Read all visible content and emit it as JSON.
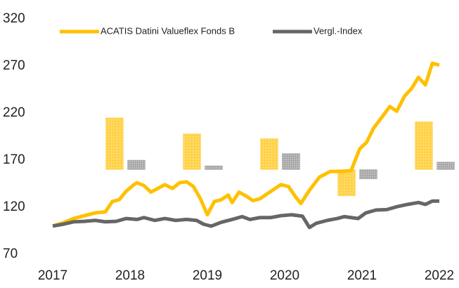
{
  "chart_data": {
    "type": "line",
    "xlim": [
      2017,
      2022
    ],
    "xticks": [
      2017,
      2018,
      2019,
      2020,
      2021,
      2022
    ],
    "ylim": [
      70,
      320
    ],
    "yticks": [
      70,
      120,
      170,
      220,
      270,
      320
    ],
    "legend": "top",
    "series": [
      {
        "name": "ACATIS Datini Valueflex Fonds B",
        "color": "#ffc000",
        "x": [
          2017,
          2017.14,
          2017.27,
          2017.41,
          2017.55,
          2017.68,
          2017.77,
          2017.86,
          2017.95,
          2018.05,
          2018.09,
          2018.18,
          2018.27,
          2018.36,
          2018.45,
          2018.55,
          2018.64,
          2018.73,
          2018.82,
          2018.91,
          2019.0,
          2019.09,
          2019.18,
          2019.27,
          2019.32,
          2019.41,
          2019.5,
          2019.59,
          2019.68,
          2019.77,
          2019.86,
          2019.95,
          2020.05,
          2020.14,
          2020.21,
          2020.32,
          2020.45,
          2020.59,
          2020.73,
          2020.86,
          2020.97,
          2021.06,
          2021.15,
          2021.27,
          2021.36,
          2021.45,
          2021.55,
          2021.64,
          2021.73,
          2021.82,
          2021.91,
          2022.0
        ],
        "values": [
          100,
          103.6,
          108,
          111,
          114,
          115,
          126,
          128,
          137,
          144,
          146,
          143,
          136,
          140,
          144,
          140,
          146,
          147,
          142,
          129,
          112,
          126,
          128,
          133,
          125,
          136,
          132,
          127,
          129,
          134,
          139,
          144,
          142,
          131,
          124,
          138,
          152,
          158,
          158,
          159,
          182,
          189,
          204,
          217,
          227,
          222,
          238,
          246,
          258,
          250,
          273,
          271
        ]
      },
      {
        "name": "Vergl.-Index",
        "color": "#666666",
        "x": [
          2017,
          2017.14,
          2017.27,
          2017.41,
          2017.55,
          2017.68,
          2017.82,
          2017.95,
          2018.09,
          2018.18,
          2018.32,
          2018.45,
          2018.59,
          2018.73,
          2018.86,
          2018.95,
          2019.05,
          2019.18,
          2019.32,
          2019.45,
          2019.55,
          2019.68,
          2019.82,
          2019.95,
          2020.09,
          2020.23,
          2020.32,
          2020.41,
          2020.55,
          2020.68,
          2020.77,
          2020.86,
          2020.95,
          2021.05,
          2021.18,
          2021.32,
          2021.45,
          2021.59,
          2021.73,
          2021.82,
          2021.91,
          2022.0
        ],
        "values": [
          100,
          102,
          104.5,
          105,
          106,
          104.5,
          105,
          108,
          107,
          109,
          106,
          108,
          106,
          107,
          106,
          102,
          99.9,
          104,
          107,
          110,
          107,
          109,
          109,
          111,
          112,
          110.5,
          98.5,
          103,
          106,
          108,
          110,
          109,
          108,
          114,
          117,
          117.5,
          120.5,
          123,
          125,
          123,
          126.5,
          126.5
        ]
      }
    ],
    "bars": {
      "x": [
        2017.8,
        2018.8,
        2019.8,
        2020.8,
        2021.8
      ],
      "base": 160,
      "series": [
        {
          "color": "#ffd966",
          "values": [
            215,
            198,
            193,
            132,
            211
          ]
        },
        {
          "color": "#a6a6a6",
          "values": [
            170,
            164,
            177,
            150,
            168
          ]
        }
      ]
    }
  }
}
